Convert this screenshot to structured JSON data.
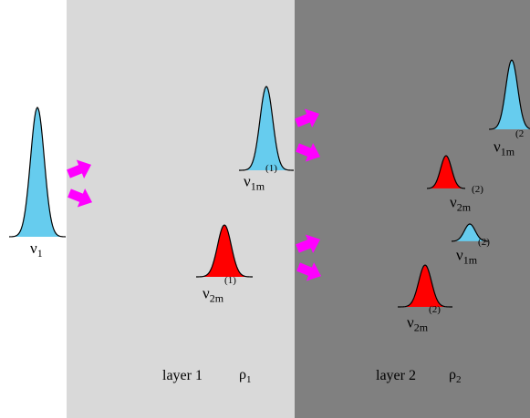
{
  "colors": {
    "background": "#ffffff",
    "layer1": "#d9d9d9",
    "layer2": "#808080",
    "mode1": "#66ccee",
    "mode2": "#ff0000",
    "arrow": "#ff00ff"
  },
  "incident": {
    "symbol": "ν",
    "sub": "1"
  },
  "layer1": {
    "label": "layer 1",
    "rho_symbol": "ρ",
    "rho_sub": "1",
    "pulse_mode1": {
      "symbol": "ν",
      "sub": "1m",
      "sup": "(1)"
    },
    "pulse_mode2": {
      "symbol": "ν",
      "sub": "2m",
      "sup": "(1)"
    }
  },
  "layer2": {
    "label": "layer 2",
    "rho_symbol": "ρ",
    "rho_sub": "2",
    "pulses": [
      {
        "symbol": "ν",
        "sub": "1m",
        "sup": "(2"
      },
      {
        "symbol": "ν",
        "sub": "2m",
        "sup": "(2)"
      },
      {
        "symbol": "ν",
        "sub": "1m",
        "sup": "(2)"
      },
      {
        "symbol": "ν",
        "sub": "2m",
        "sup": "(2)"
      }
    ]
  }
}
